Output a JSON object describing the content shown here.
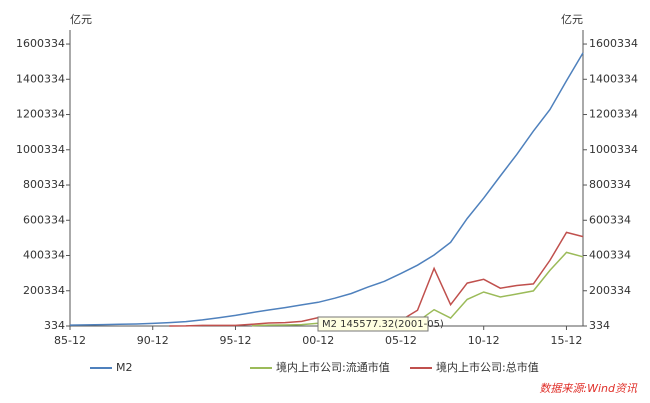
{
  "chart_data": {
    "type": "line",
    "y_label": "亿元",
    "x": [
      "85-12",
      "86-12",
      "87-12",
      "88-12",
      "89-12",
      "90-12",
      "91-12",
      "92-12",
      "93-12",
      "94-12",
      "95-12",
      "96-12",
      "97-12",
      "98-12",
      "99-12",
      "00-12",
      "01-12",
      "02-12",
      "03-12",
      "04-12",
      "05-12",
      "06-12",
      "07-12",
      "08-12",
      "09-12",
      "10-12",
      "11-12",
      "12-12",
      "13-12",
      "14-12",
      "15-12",
      "16-12"
    ],
    "xticks": [
      "85-12",
      "90-12",
      "95-12",
      "00-12",
      "05-12",
      "10-12",
      "15-12"
    ],
    "ylim": [
      334,
      1680000
    ],
    "yticks": [
      334,
      200334,
      400334,
      600334,
      800334,
      1000334,
      1200334,
      1400334,
      1600334
    ],
    "series": [
      {
        "name": "M2",
        "color": "#4f81bd",
        "values": [
          5199,
          6721,
          8330,
          10100,
          11950,
          15293,
          19350,
          25402,
          34880,
          46924,
          60750,
          76095,
          90995,
          104499,
          119898,
          134610,
          158302,
          185007,
          221223,
          254107,
          298756,
          345578,
          403442,
          475167,
          610225,
          725852,
          851591,
          974149,
          1106525,
          1228375,
          1392278,
          1550067
        ]
      },
      {
        "name": "境内上市公司:流通市值",
        "color": "#9bbb59",
        "values": [
          null,
          null,
          null,
          null,
          null,
          null,
          null,
          null,
          null,
          null,
          null,
          2867,
          5204,
          5746,
          8214,
          16088,
          14463,
          12485,
          13179,
          11689,
          10631,
          25004,
          93064,
          45214,
          151259,
          193110,
          164921,
          181658,
          199580,
          315624,
          417925,
          393266
        ]
      },
      {
        "name": "境内上市公司:总市值",
        "color": "#c0504d",
        "values": [
          null,
          null,
          null,
          null,
          null,
          null,
          110,
          1048,
          3531,
          3690,
          3474,
          9842,
          17529,
          19506,
          26471,
          48091,
          43522,
          38329,
          42458,
          37056,
          32430,
          89404,
          327141,
          121366,
          243939,
          265423,
          214758,
          230358,
          239077,
          372547,
          531463,
          507686
        ]
      }
    ],
    "tooltip": "M2 145577.32(2001-05)",
    "source": "数据来源:Wind资讯"
  }
}
